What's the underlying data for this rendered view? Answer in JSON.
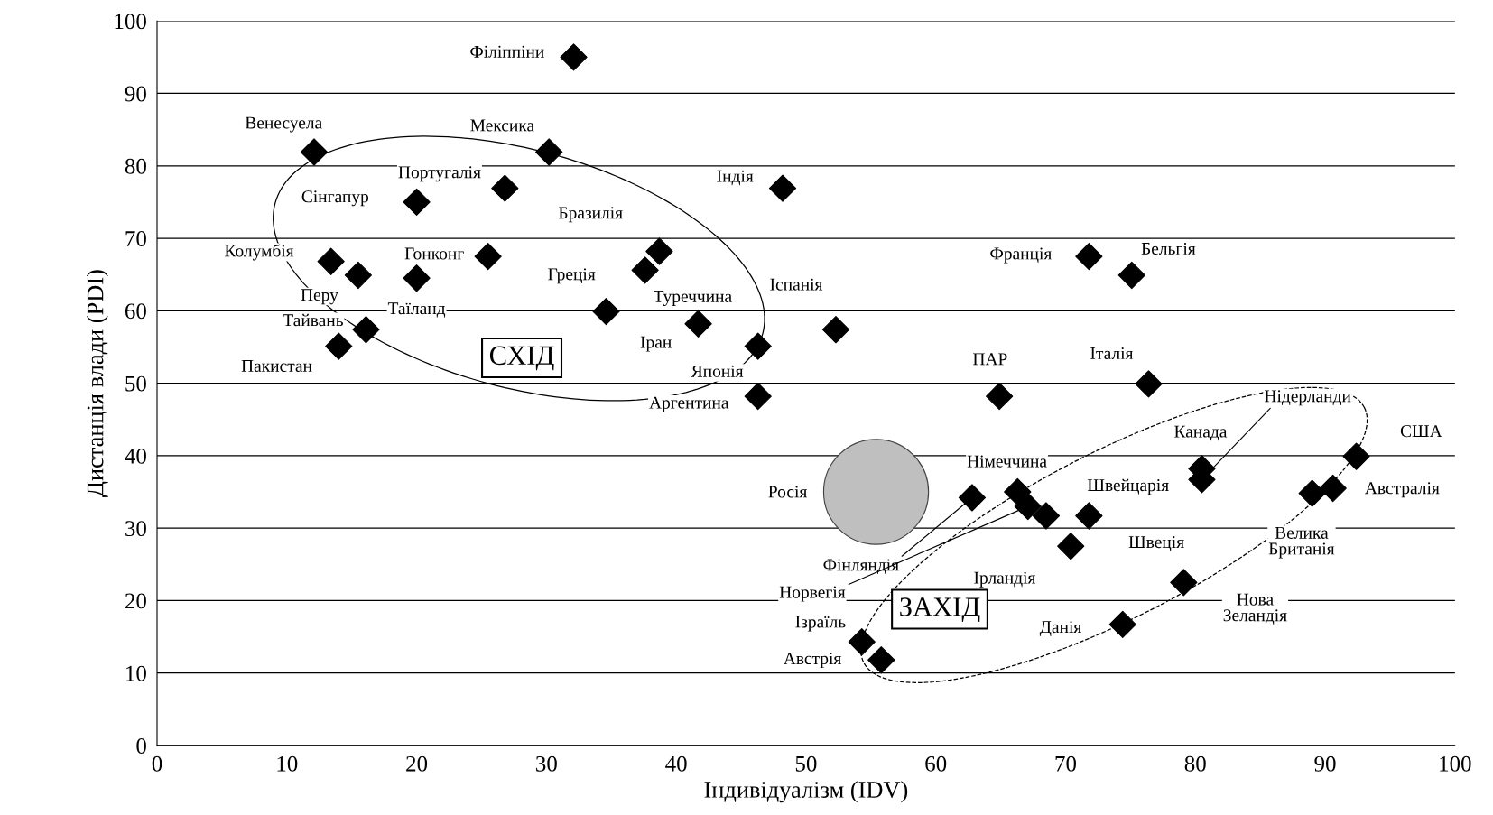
{
  "chart_data": {
    "type": "scatter",
    "xlabel": "Індивідуалізм (IDV)",
    "ylabel": "Дистанція влади (PDI)",
    "xlim": [
      0,
      100
    ],
    "ylim": [
      0,
      100
    ],
    "xticks": [
      0,
      10,
      20,
      30,
      40,
      50,
      60,
      70,
      80,
      90,
      100
    ],
    "yticks": [
      0,
      10,
      20,
      30,
      40,
      50,
      60,
      70,
      80,
      90,
      100
    ],
    "grid": "y",
    "marker": "diamond",
    "series": [
      {
        "color": "#000000",
        "x": [
          32.1,
          12.1,
          30.2,
          26.8,
          20.0,
          48.2,
          38.7,
          13.4,
          25.5,
          15.5,
          20.0,
          34.6,
          37.6,
          41.7,
          16.1,
          14.0,
          46.3,
          52.3,
          46.3,
          71.8,
          75.1,
          64.9,
          76.4,
          92.4,
          80.5,
          80.5,
          90.6,
          89.0,
          66.3,
          62.8,
          67.1,
          68.5,
          71.8,
          70.4,
          79.1,
          74.4,
          54.3,
          55.8
        ],
        "values": [
          95.0,
          81.9,
          81.9,
          76.9,
          75.0,
          76.9,
          68.2,
          66.8,
          67.5,
          64.9,
          64.5,
          59.9,
          65.6,
          58.2,
          57.4,
          55.1,
          55.1,
          57.4,
          48.2,
          67.5,
          64.9,
          48.2,
          49.9,
          39.9,
          38.2,
          36.7,
          35.5,
          34.8,
          35.0,
          34.2,
          33.0,
          31.7,
          31.7,
          27.5,
          22.5,
          16.7,
          14.3,
          11.8
        ]
      },
      {
        "color": "#bfbfbf",
        "marker": "circle",
        "x": [
          55.4
        ],
        "values": [
          35.0
        ]
      }
    ],
    "annotations": [
      {
        "text": "Філіппіни",
        "x": 32.1,
        "y": 95.0
      },
      {
        "text": "Венесуела",
        "x": 12.1,
        "y": 81.9
      },
      {
        "text": "Мексика",
        "x": 30.2,
        "y": 81.9
      },
      {
        "text": "Португалія",
        "x": 26.8,
        "y": 76.9
      },
      {
        "text": "Сінгапур",
        "x": 20.0,
        "y": 75.0
      },
      {
        "text": "Індія",
        "x": 48.2,
        "y": 76.9
      },
      {
        "text": "Бразилія",
        "x": 38.7,
        "y": 68.2
      },
      {
        "text": "Колумбія",
        "x": 13.4,
        "y": 66.8
      },
      {
        "text": "Гонконг",
        "x": 25.5,
        "y": 67.5
      },
      {
        "text": "Перу",
        "x": 15.5,
        "y": 64.9
      },
      {
        "text": "Таїланд",
        "x": 20.0,
        "y": 64.5
      },
      {
        "text": "Греція",
        "x": 34.6,
        "y": 59.9
      },
      {
        "text": "Туреччина",
        "x": 37.6,
        "y": 65.6
      },
      {
        "text": "Іран",
        "x": 41.7,
        "y": 58.2
      },
      {
        "text": "Тайвань",
        "x": 16.1,
        "y": 57.4
      },
      {
        "text": "Пакистан",
        "x": 14.0,
        "y": 55.1
      },
      {
        "text": "Японія",
        "x": 46.3,
        "y": 55.1
      },
      {
        "text": "Іспанія",
        "x": 52.3,
        "y": 57.4
      },
      {
        "text": "Аргентина",
        "x": 46.3,
        "y": 48.2
      },
      {
        "text": "Франція",
        "x": 71.8,
        "y": 67.5
      },
      {
        "text": "Бельгія",
        "x": 75.1,
        "y": 64.9
      },
      {
        "text": "ПАР",
        "x": 64.9,
        "y": 48.2
      },
      {
        "text": "Італія",
        "x": 76.4,
        "y": 49.9
      },
      {
        "text": "США",
        "x": 92.4,
        "y": 39.9
      },
      {
        "text": "Канада",
        "x": 80.5,
        "y": 38.2
      },
      {
        "text": "Нідерланди",
        "x": 80.5,
        "y": 36.7
      },
      {
        "text": "Австралія",
        "x": 90.6,
        "y": 35.5
      },
      {
        "text": "Велика\nБританія",
        "x": 89.0,
        "y": 34.8
      },
      {
        "text": "Німеччина",
        "x": 66.3,
        "y": 35.0
      },
      {
        "text": "Фінляндія",
        "x": 62.8,
        "y": 34.2
      },
      {
        "text": "Норвегія",
        "x": 67.1,
        "y": 33.0
      },
      {
        "text": "Швейцарія",
        "x": 68.5,
        "y": 31.7
      },
      {
        "text": "Швеція",
        "x": 71.8,
        "y": 31.7
      },
      {
        "text": "Ірландія",
        "x": 70.4,
        "y": 27.5
      },
      {
        "text": "Нова\nЗеландія",
        "x": 79.1,
        "y": 22.5
      },
      {
        "text": "Данія",
        "x": 74.4,
        "y": 16.7
      },
      {
        "text": "Ізраїль",
        "x": 54.3,
        "y": 14.3
      },
      {
        "text": "Австрія",
        "x": 55.8,
        "y": 11.8
      },
      "Росія",
      "СХІД",
      "ЗАХІД"
    ]
  }
}
